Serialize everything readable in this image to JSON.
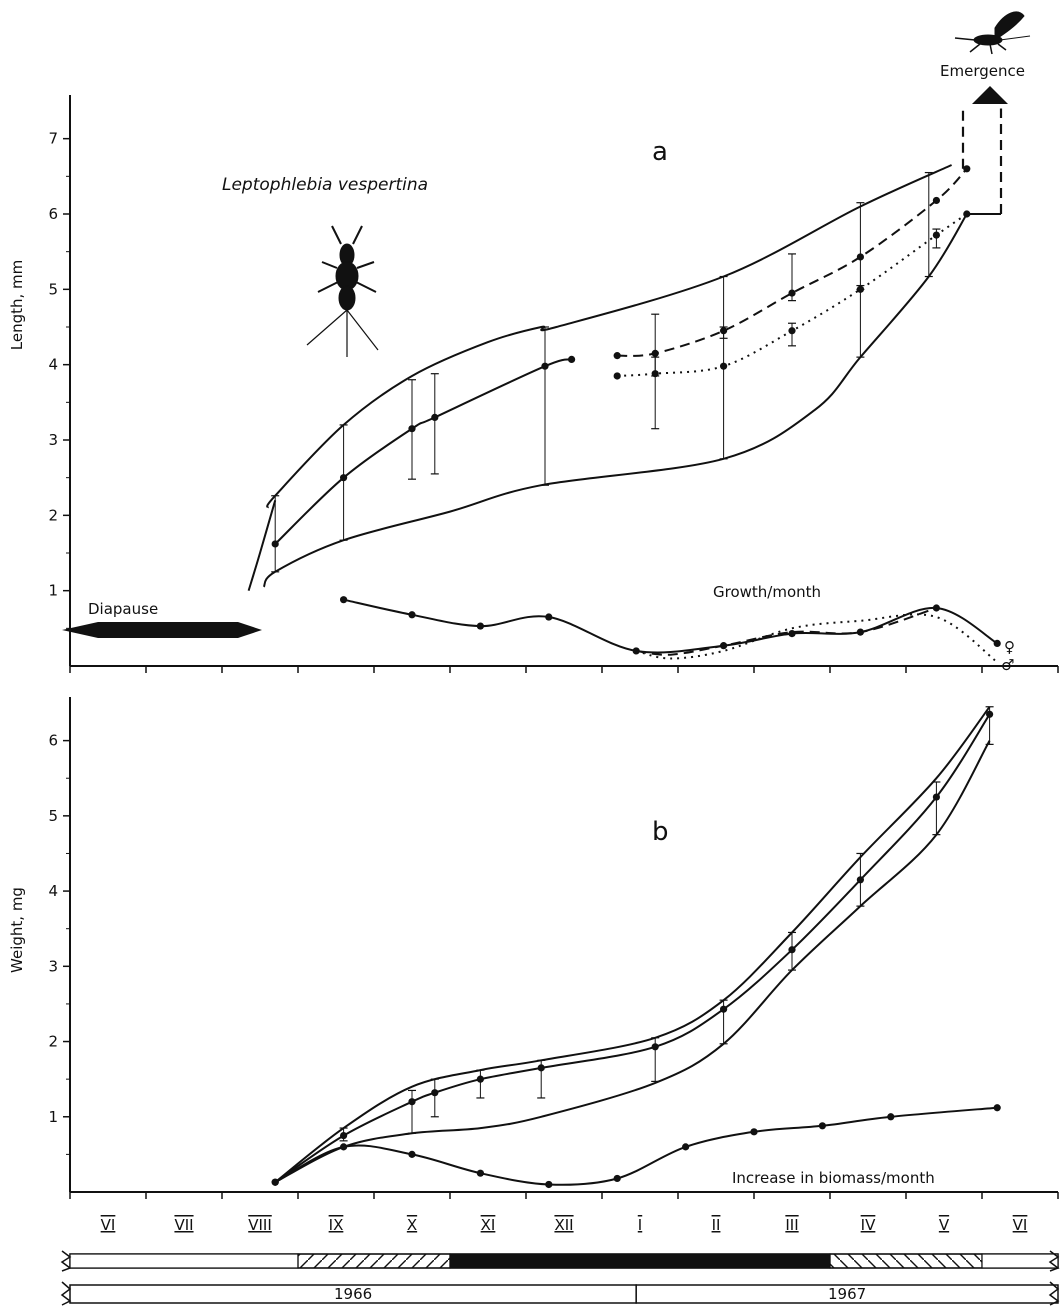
{
  "chart_data": [
    {
      "type": "line",
      "panel": "a",
      "title": "Leptophlebia vespertina",
      "ylabel": "Length, mm",
      "ylim": [
        0,
        7.5
      ],
      "yticks": [
        1,
        2,
        3,
        4,
        5,
        6,
        7
      ],
      "x_unit": "month index (0 = start of VI 1966, 1 = one month)",
      "xlim": [
        0,
        13
      ],
      "series": [
        {
          "id": "mean",
          "style": "solid-markers",
          "points": [
            [
              2.7,
              1.62
            ],
            [
              3.6,
              2.5
            ],
            [
              4.5,
              3.15
            ],
            [
              4.8,
              3.3
            ],
            [
              6.25,
              3.98
            ],
            [
              6.6,
              4.07
            ]
          ]
        },
        {
          "id": "upper-envelope",
          "style": "solid",
          "points": [
            [
              2.6,
              2.1
            ],
            [
              2.7,
              2.26
            ],
            [
              3.6,
              3.2
            ],
            [
              4.5,
              3.85
            ],
            [
              5.5,
              4.3
            ],
            [
              6.2,
              4.5
            ],
            [
              6.4,
              4.5
            ],
            [
              8.6,
              5.17
            ],
            [
              10.4,
              6.1
            ],
            [
              11.6,
              6.65
            ]
          ]
        },
        {
          "id": "lower-envelope",
          "style": "solid",
          "points": [
            [
              2.55,
              1.05
            ],
            [
              2.7,
              1.25
            ],
            [
              3.6,
              1.67
            ],
            [
              5.0,
              2.05
            ],
            [
              6.2,
              2.4
            ],
            [
              8.6,
              2.75
            ],
            [
              9.8,
              3.4
            ],
            [
              10.4,
              4.1
            ],
            [
              11.3,
              5.17
            ],
            [
              11.8,
              6.0
            ]
          ]
        },
        {
          "id": "early-rise",
          "style": "solid",
          "points": [
            [
              2.35,
              1.0
            ],
            [
              2.5,
              1.5
            ],
            [
              2.7,
              2.2
            ]
          ]
        },
        {
          "id": "female-mean",
          "name": "♀",
          "style": "dashed-markers",
          "points": [
            [
              7.2,
              4.12
            ],
            [
              7.7,
              4.15
            ],
            [
              8.6,
              4.45
            ],
            [
              9.5,
              4.95
            ],
            [
              10.4,
              5.43
            ],
            [
              11.4,
              6.18
            ],
            [
              11.8,
              6.6
            ]
          ]
        },
        {
          "id": "male-mean",
          "name": "♂",
          "style": "dotted-markers",
          "points": [
            [
              7.2,
              3.85
            ],
            [
              7.7,
              3.88
            ],
            [
              8.6,
              3.98
            ],
            [
              9.5,
              4.45
            ],
            [
              10.4,
              5.0
            ],
            [
              11.4,
              5.72
            ],
            [
              11.8,
              6.0
            ]
          ]
        },
        {
          "id": "growth-per-month",
          "label": "Growth/month",
          "style": "solid-markers",
          "points": [
            [
              3.6,
              0.88
            ],
            [
              4.5,
              0.68
            ],
            [
              5.4,
              0.53
            ],
            [
              6.3,
              0.65
            ],
            [
              7.45,
              0.2
            ],
            [
              8.6,
              0.27
            ],
            [
              9.5,
              0.43
            ],
            [
              10.4,
              0.45
            ],
            [
              11.4,
              0.77
            ],
            [
              12.2,
              0.3
            ]
          ]
        },
        {
          "id": "growth-female",
          "name": "♀",
          "style": "dashed",
          "points": [
            [
              7.45,
              0.2
            ],
            [
              7.9,
              0.15
            ],
            [
              8.6,
              0.27
            ],
            [
              9.5,
              0.45
            ],
            [
              10.4,
              0.45
            ],
            [
              11.4,
              0.77
            ]
          ]
        },
        {
          "id": "growth-male",
          "name": "♂",
          "style": "dotted",
          "points": [
            [
              7.45,
              0.2
            ],
            [
              7.9,
              0.1
            ],
            [
              8.6,
              0.2
            ],
            [
              9.5,
              0.5
            ],
            [
              10.4,
              0.6
            ],
            [
              11.4,
              0.65
            ],
            [
              12.2,
              0.05
            ]
          ]
        }
      ],
      "error_bars": [
        [
          2.7,
          1.25,
          2.26
        ],
        [
          3.6,
          1.67,
          3.2
        ],
        [
          4.5,
          2.48,
          3.8
        ],
        [
          4.8,
          2.55,
          3.88
        ],
        [
          6.25,
          2.4,
          4.5
        ],
        [
          7.7,
          3.15,
          4.67
        ],
        [
          8.6,
          2.75,
          5.17
        ],
        [
          9.5,
          4.85,
          5.47
        ],
        [
          10.4,
          4.1,
          6.15
        ],
        [
          11.3,
          5.17,
          6.55
        ],
        [
          7.7,
          3.85,
          4.1
        ],
        [
          8.6,
          4.35,
          4.5
        ],
        [
          9.5,
          4.25,
          4.55
        ],
        [
          10.4,
          5.0,
          5.05
        ],
        [
          11.4,
          5.55,
          5.8
        ]
      ],
      "annotations": {
        "letter": "a",
        "diapause": "Diapause",
        "emergence": "Emergence",
        "growth": "Growth/month",
        "female_symbol": "♀",
        "male_symbol": "♂"
      }
    },
    {
      "type": "line",
      "panel": "b",
      "ylabel": "Weight, mg",
      "ylim": [
        0,
        6.5
      ],
      "yticks": [
        1,
        2,
        3,
        4,
        5,
        6
      ],
      "x_unit": "month index (0 = start of VI 1966, 1 = one month)",
      "xlim": [
        0,
        13
      ],
      "series": [
        {
          "id": "mean",
          "style": "solid-markers",
          "points": [
            [
              2.7,
              0.13
            ],
            [
              3.6,
              0.75
            ],
            [
              4.5,
              1.2
            ],
            [
              4.8,
              1.32
            ],
            [
              5.4,
              1.5
            ],
            [
              6.2,
              1.65
            ],
            [
              7.7,
              1.93
            ],
            [
              8.6,
              2.43
            ],
            [
              9.5,
              3.22
            ],
            [
              10.4,
              4.15
            ],
            [
              11.4,
              5.25
            ],
            [
              12.1,
              6.35
            ]
          ]
        },
        {
          "id": "upper-envelope",
          "style": "solid",
          "points": [
            [
              2.7,
              0.13
            ],
            [
              3.6,
              0.85
            ],
            [
              4.5,
              1.4
            ],
            [
              5.4,
              1.62
            ],
            [
              6.2,
              1.75
            ],
            [
              7.7,
              2.05
            ],
            [
              8.6,
              2.55
            ],
            [
              9.5,
              3.45
            ],
            [
              10.4,
              4.45
            ],
            [
              11.4,
              5.5
            ],
            [
              12.1,
              6.45
            ]
          ]
        },
        {
          "id": "lower-envelope",
          "style": "solid",
          "points": [
            [
              2.7,
              0.13
            ],
            [
              3.6,
              0.6
            ],
            [
              4.5,
              0.78
            ],
            [
              5.4,
              0.85
            ],
            [
              6.2,
              1.0
            ],
            [
              7.7,
              1.45
            ],
            [
              8.6,
              1.97
            ],
            [
              9.5,
              2.95
            ],
            [
              10.4,
              3.8
            ],
            [
              11.4,
              4.75
            ],
            [
              12.1,
              6.0
            ]
          ]
        },
        {
          "id": "biomass-increase",
          "label": "Increase in biomass/month",
          "style": "solid-markers",
          "points": [
            [
              2.7,
              0.13
            ],
            [
              3.6,
              0.6
            ],
            [
              4.5,
              0.5
            ],
            [
              5.4,
              0.25
            ],
            [
              6.3,
              0.1
            ],
            [
              7.2,
              0.18
            ],
            [
              8.1,
              0.6
            ],
            [
              9.0,
              0.8
            ],
            [
              9.9,
              0.88
            ],
            [
              10.8,
              1.0
            ],
            [
              12.2,
              1.12
            ]
          ]
        }
      ],
      "error_bars": [
        [
          3.6,
          0.68,
          0.85
        ],
        [
          4.5,
          0.78,
          1.35
        ],
        [
          4.8,
          1.0,
          1.5
        ],
        [
          5.4,
          1.25,
          1.62
        ],
        [
          6.2,
          1.25,
          1.75
        ],
        [
          7.7,
          1.47,
          2.05
        ],
        [
          8.6,
          1.97,
          2.55
        ],
        [
          9.5,
          2.95,
          3.45
        ],
        [
          10.4,
          3.8,
          4.5
        ],
        [
          11.4,
          4.75,
          5.45
        ],
        [
          12.1,
          5.95,
          6.45
        ]
      ],
      "annotations": {
        "letter": "b",
        "biomass": "Increase in biomass/month"
      }
    }
  ],
  "months": [
    "VI",
    "VII",
    "VIII",
    "IX",
    "X",
    "XI",
    "XII",
    "I",
    "II",
    "III",
    "IV",
    "V",
    "VI"
  ],
  "season_bar": [
    {
      "kind": "blank",
      "from": 0,
      "to": 3.0
    },
    {
      "kind": "hatch-forward",
      "from": 3.0,
      "to": 5.0
    },
    {
      "kind": "solid",
      "from": 5.0,
      "to": 10.0
    },
    {
      "kind": "hatch-back",
      "from": 10.0,
      "to": 12.0
    },
    {
      "kind": "blank",
      "from": 12.0,
      "to": 13.0
    }
  ],
  "years": [
    {
      "label": "1966",
      "from": 0,
      "to": 7.45
    },
    {
      "label": "1967",
      "from": 7.45,
      "to": 13
    }
  ]
}
